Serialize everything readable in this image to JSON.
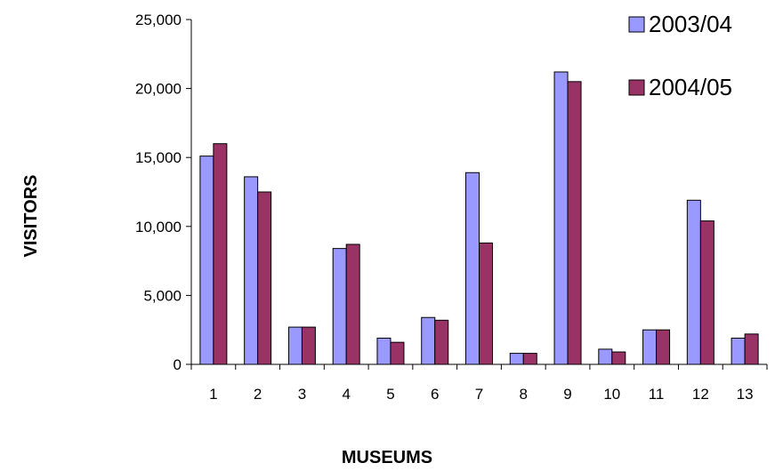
{
  "chart_data": {
    "type": "bar",
    "title": "",
    "xlabel": "MUSEUMS",
    "ylabel": "VISITORS",
    "categories": [
      "1",
      "2",
      "3",
      "4",
      "5",
      "6",
      "7",
      "8",
      "9",
      "10",
      "11",
      "12",
      "13"
    ],
    "series": [
      {
        "name": "2003/04",
        "color": "#9999FF",
        "values": [
          15100,
          13600,
          2700,
          8400,
          1900,
          3400,
          13900,
          800,
          21200,
          1100,
          2500,
          11900,
          1900
        ]
      },
      {
        "name": "2004/05",
        "color": "#993366",
        "values": [
          16000,
          12500,
          2700,
          8700,
          1600,
          3200,
          8800,
          800,
          20500,
          900,
          2500,
          10400,
          2200
        ]
      }
    ],
    "ylim": [
      0,
      25000
    ],
    "yticks": [
      0,
      5000,
      10000,
      15000,
      20000,
      25000
    ],
    "yticklabels": [
      "0",
      "5,000",
      "10,000",
      "15,000",
      "20,000",
      "25,000"
    ],
    "grid": false,
    "legend": "top-right"
  }
}
